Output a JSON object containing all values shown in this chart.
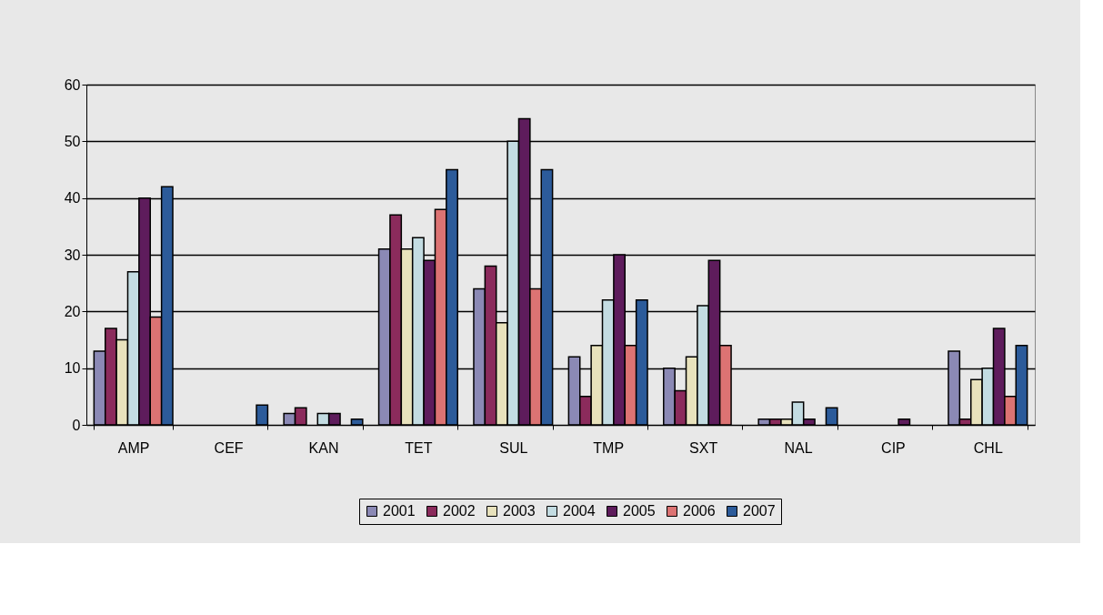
{
  "chart_data": {
    "type": "bar",
    "categories": [
      "AMP",
      "CEF",
      "KAN",
      "TET",
      "SUL",
      "TMP",
      "SXT",
      "NAL",
      "CIP",
      "CHL"
    ],
    "series": [
      {
        "name": "2001",
        "color": "#8b89b5",
        "values": [
          13,
          0,
          2,
          31,
          24,
          12,
          10,
          1,
          0,
          13
        ]
      },
      {
        "name": "2002",
        "color": "#8b2b5c",
        "values": [
          17,
          0,
          3,
          37,
          28,
          5,
          6,
          1,
          0,
          1
        ]
      },
      {
        "name": "2003",
        "color": "#e8e2bc",
        "values": [
          15,
          0,
          0,
          31,
          18,
          14,
          12,
          1,
          0,
          8
        ]
      },
      {
        "name": "2004",
        "color": "#c3dce2",
        "values": [
          27,
          0,
          2,
          33,
          50,
          22,
          21,
          4,
          0,
          10
        ]
      },
      {
        "name": "2005",
        "color": "#5e1c5c",
        "values": [
          40,
          0,
          2,
          29,
          54,
          30,
          29,
          1,
          1,
          17
        ]
      },
      {
        "name": "2006",
        "color": "#dc7373",
        "values": [
          19,
          0,
          0,
          38,
          24,
          14,
          14,
          0,
          0,
          5
        ]
      },
      {
        "name": "2007",
        "color": "#2c5b9a",
        "values": [
          42,
          3.5,
          1,
          45,
          45,
          22,
          0,
          3,
          0,
          14
        ]
      }
    ],
    "ylim": [
      0,
      60
    ],
    "yticks": [
      0,
      10,
      20,
      30,
      40,
      50,
      60
    ],
    "grid": "y",
    "legend": "bottom"
  }
}
